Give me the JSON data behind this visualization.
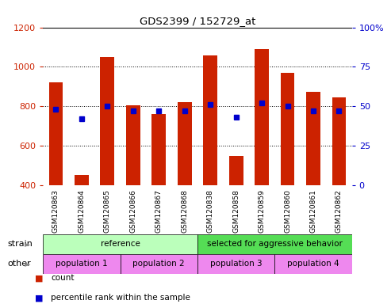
{
  "title": "GDS2399 / 152729_at",
  "samples": [
    "GSM120863",
    "GSM120864",
    "GSM120865",
    "GSM120866",
    "GSM120867",
    "GSM120868",
    "GSM120838",
    "GSM120858",
    "GSM120859",
    "GSM120860",
    "GSM120861",
    "GSM120862"
  ],
  "counts": [
    920,
    455,
    1048,
    805,
    760,
    820,
    1058,
    548,
    1092,
    970,
    875,
    845
  ],
  "percentiles": [
    48,
    42,
    50,
    47,
    47,
    47,
    51,
    43,
    52,
    50,
    47,
    47
  ],
  "bar_color": "#cc2200",
  "percentile_color": "#0000cc",
  "ymin": 400,
  "ymax": 1200,
  "yticks": [
    400,
    600,
    800,
    1000,
    1200
  ],
  "y2min": 0,
  "y2max": 100,
  "y2ticks": [
    0,
    25,
    50,
    75,
    100
  ],
  "ylabel_color": "#cc2200",
  "y2label_color": "#0000cc",
  "strain_groups": [
    {
      "label": "reference",
      "start": 0,
      "end": 6,
      "color": "#bbffbb"
    },
    {
      "label": "selected for aggressive behavior",
      "start": 6,
      "end": 12,
      "color": "#55dd55"
    }
  ],
  "other_groups": [
    {
      "label": "population 1",
      "start": 0,
      "end": 3,
      "color": "#ee88ee"
    },
    {
      "label": "population 2",
      "start": 3,
      "end": 6,
      "color": "#ee88ee"
    },
    {
      "label": "population 3",
      "start": 6,
      "end": 9,
      "color": "#ee88ee"
    },
    {
      "label": "population 4",
      "start": 9,
      "end": 12,
      "color": "#ee88ee"
    }
  ],
  "tick_bg_color": "#cccccc",
  "plot_bg": "#ffffff",
  "legend_items": [
    "count",
    "percentile rank within the sample"
  ],
  "strain_label": "strain",
  "other_label": "other",
  "bar_width": 0.55
}
